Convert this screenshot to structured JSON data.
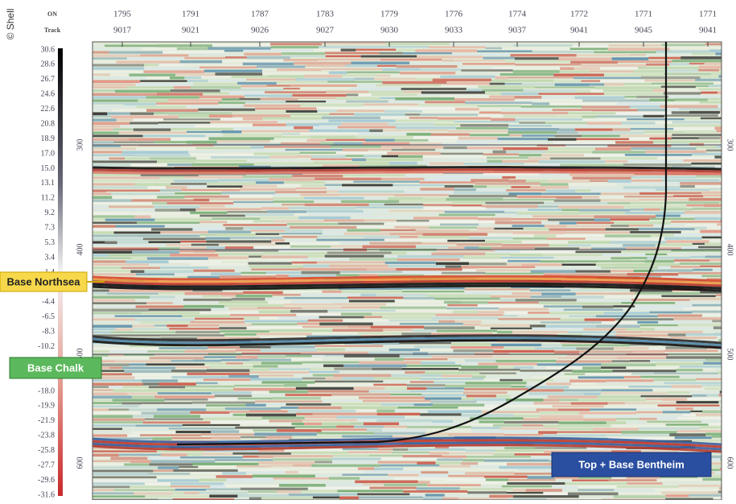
{
  "copyright": "© Shell",
  "header": {
    "row_labels": [
      "ON",
      "Track"
    ],
    "columns": [
      [
        "1795",
        "9017"
      ],
      [
        "1791",
        "9021"
      ],
      [
        "1787",
        "9026"
      ],
      [
        "1783",
        "9027"
      ],
      [
        "1779",
        "9030"
      ],
      [
        "1776",
        "9033"
      ],
      [
        "1774",
        "9037"
      ],
      [
        "1772",
        "9041"
      ],
      [
        "1771",
        "9045"
      ],
      [
        "1771",
        "9041"
      ]
    ]
  },
  "color_scale": [
    "30.6",
    "28.6",
    "26.7",
    "24.6",
    "22.6",
    "20.8",
    "18.9",
    "17.0",
    "15.0",
    "13.1",
    "11.2",
    "9.2",
    "7.3",
    "5.3",
    "3.4",
    "1.4",
    "",
    "-4.4",
    "-6.5",
    "-8.3",
    "-10.2",
    "",
    "-16.0",
    "-18.0",
    "-19.9",
    "-21.9",
    "-23.8",
    "-25.8",
    "-27.7",
    "-29.6",
    "-31.6"
  ],
  "depth_labels": [
    "300",
    "400",
    "500",
    "600"
  ],
  "callouts": {
    "base_northsea": "Base Northsea",
    "base_chalk": "Base Chalk",
    "bentheim": "Top + Base Bentheim"
  }
}
